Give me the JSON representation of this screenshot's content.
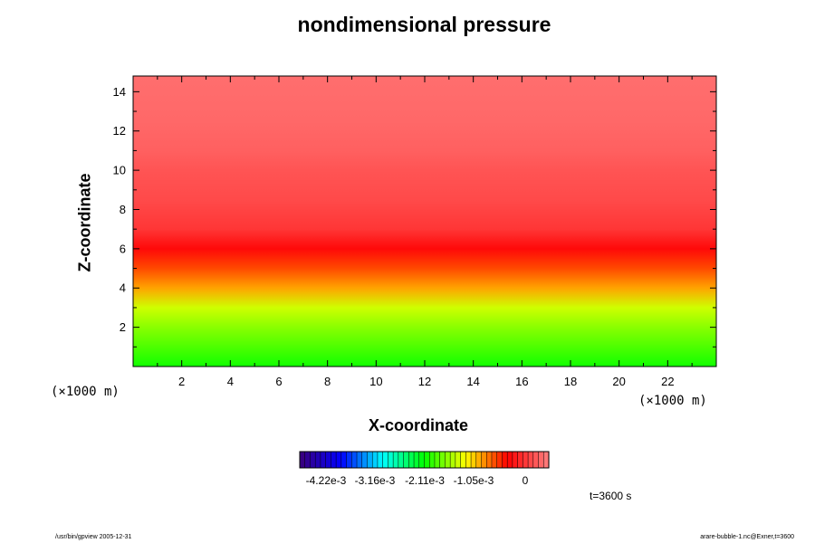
{
  "chart_data": {
    "type": "heatmap",
    "title": "nondimensional pressure",
    "xlabel": "X-coordinate",
    "ylabel": "Z-coordinate",
    "x_unit": "(×1000 m)",
    "y_unit": "(×1000 m)",
    "xlim": [
      0,
      24
    ],
    "ylim": [
      0,
      14.8
    ],
    "x_ticks": [
      2,
      4,
      6,
      8,
      10,
      12,
      14,
      16,
      18,
      20,
      22
    ],
    "y_ticks": [
      2,
      4,
      6,
      8,
      10,
      12,
      14
    ],
    "colorbar": {
      "labels": [
        "-4.22e-3",
        "-3.16e-3",
        "-2.11e-3",
        "-1.05e-3",
        "0"
      ],
      "label_values": [
        -0.00422,
        -0.00316,
        -0.00211,
        -0.00105,
        0
      ],
      "range": [
        -0.00475,
        0.00034
      ],
      "colors": [
        "#3b007a",
        "#0000ff",
        "#00ffff",
        "#00ff00",
        "#ffff00",
        "#ff0000",
        "#ff8080"
      ]
    },
    "bands": [
      {
        "z": 0.0,
        "value": -0.00215
      },
      {
        "z": 1.0,
        "value": -0.00195
      },
      {
        "z": 2.0,
        "value": -0.00175
      },
      {
        "z": 3.0,
        "value": -0.00152
      },
      {
        "z": 4.0,
        "value": -0.00105
      },
      {
        "z": 5.0,
        "value": -0.00075
      },
      {
        "z": 6.0,
        "value": -0.00045
      },
      {
        "z": 7.0,
        "value": -0.00015
      },
      {
        "z": 8.5,
        "value": -2e-05
      },
      {
        "z": 10.0,
        "value": 5e-05
      },
      {
        "z": 11.0,
        "value": 0.00013
      },
      {
        "z": 12.5,
        "value": 0.00018
      },
      {
        "z": 14.8,
        "value": 0.00022
      }
    ],
    "grid": false
  },
  "annotations": {
    "time": "t=3600 s",
    "footer_left": "/usr/bin/gpview 2005-12-31",
    "footer_right": "arare-bubble-1.nc@Exner,t=3600"
  }
}
